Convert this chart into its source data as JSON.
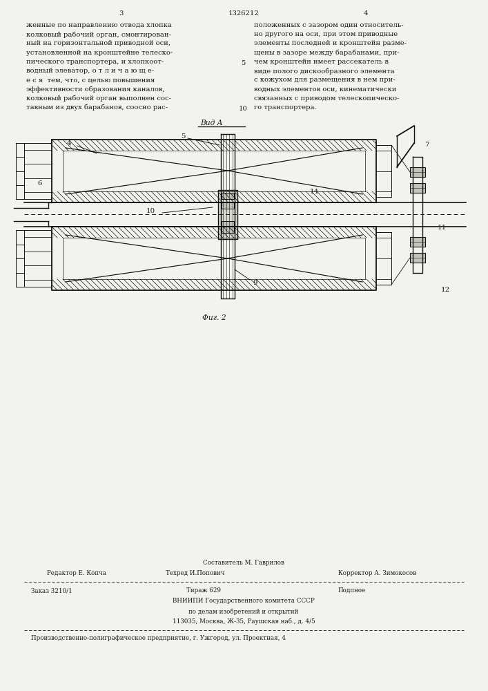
{
  "page_width": 7.07,
  "page_height": 10.0,
  "bg_color": "#f2f2ee",
  "text_color": "#1a1a1a",
  "header_patent_number": "1326212",
  "header_page_left": "3",
  "header_page_right": "4",
  "col_left_lines": [
    "женные по направлению отвода хлопка",
    "колковый рабочий орган, смонтирован-",
    "ный на горизонтальной приводной оси,",
    "установленной на кронштейне телеско-",
    "пического транспортера, и хлопкоот-",
    "водный элеватор, о т л и ч а ю щ е-",
    "е с я  тем, что, с целью повышения",
    "эффективности образования каналов,",
    "колковый рабочий орган выполнен сос-",
    "тавным из двух барабанов, соосно рас-"
  ],
  "col_right_lines": [
    "положенных с зазором один относитель-",
    "но другого на оси, при этом приводные",
    "элементы последней и кронштейн разме-",
    "щены в зазоре между барабанами, при-",
    "чем кронштейн имеет рассекатель в",
    "виде полого дискообразного элемента",
    "с кожухом для размещения в нем при-",
    "водных элементов оси, кинематически",
    "связанных с приводом телескопическо-",
    "го транспортера."
  ],
  "view_label": "Вид A",
  "fig_label": "Фиг. 2",
  "footer_composer": "Составитель М. Гаврилов",
  "footer_editor": "Редактор Е. Копча",
  "footer_techred": "Техред И.Попович",
  "footer_corrector": "Корректор А. Зимокосов",
  "footer_order": "Заказ 3210/1",
  "footer_print": "Тираж 629",
  "footer_podpisnoe": "Подпное",
  "footer_vnipi": "ВНИИПИ Государственного комитета СССР",
  "footer_delam": "по делам изобретений и открытий",
  "footer_address": "113035, Москва, Ж-35, Раушская наб., д. 4/5",
  "footer_production": "Производственно-полиграфическое предприятие, г. Ужгород, ул. Проектная, 4"
}
